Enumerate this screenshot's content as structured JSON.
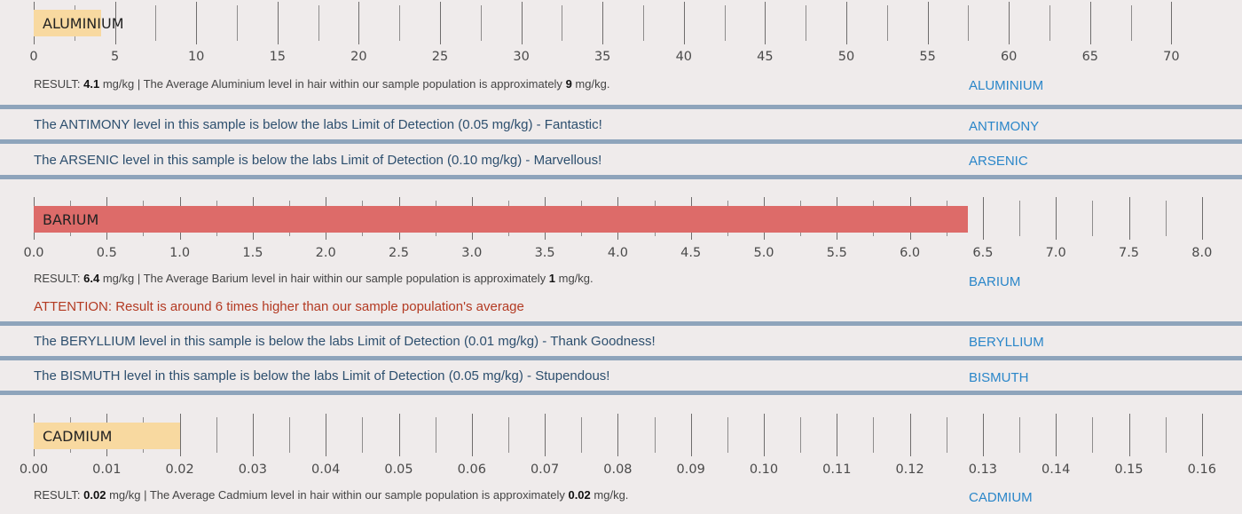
{
  "colors": {
    "low_bar": "#f8d9a0",
    "high_bar": "#dd6b69",
    "rule": "#8ea4bb",
    "link": "#2a86c9"
  },
  "sections": {
    "aluminium": {
      "bar_label": "ALUMINIUM",
      "ticks": [
        "0",
        "5",
        "10",
        "15",
        "20",
        "25",
        "30",
        "35",
        "40",
        "45",
        "50",
        "55",
        "60",
        "65",
        "70"
      ],
      "max": 72.5,
      "value": 4.1,
      "result_prefix": "RESULT:",
      "result_value": "4.1",
      "result_mid": "mg/kg | The Average Aluminium level in hair within our sample population is approximately",
      "avg_value": "9",
      "result_unit": "mg/kg.",
      "side_label": "ALUMINIUM"
    },
    "antimony": {
      "message": "The ANTIMONY level in this sample is below the labs Limit of Detection (0.05 mg/kg) - Fantastic!",
      "side_label": "ANTIMONY"
    },
    "arsenic": {
      "message": "The ARSENIC level in this sample is below the labs Limit of Detection (0.10 mg/kg) - Marvellous!",
      "side_label": "ARSENIC"
    },
    "barium": {
      "bar_label": "BARIUM",
      "ticks": [
        "0.0",
        "0.5",
        "1.0",
        "1.5",
        "2.0",
        "2.5",
        "3.0",
        "3.5",
        "4.0",
        "4.5",
        "5.0",
        "5.5",
        "6.0",
        "6.5",
        "7.0",
        "7.5",
        "8.0"
      ],
      "max": 8.0,
      "value": 6.4,
      "result_prefix": "RESULT:",
      "result_value": "6.4",
      "result_mid": "mg/kg | The Average Barium level in hair within our sample population is approximately",
      "avg_value": "1",
      "result_unit": "mg/kg.",
      "attention": "ATTENTION: Result is around 6 times higher than our sample population's average",
      "side_label": "BARIUM"
    },
    "beryllium": {
      "message": "The BERYLLIUM level in this sample is below the labs Limit of Detection (0.01 mg/kg) - Thank Goodness!",
      "side_label": "BERYLLIUM"
    },
    "bismuth": {
      "message": "The BISMUTH level in this sample is below the labs Limit of Detection (0.05 mg/kg) - Stupendous!",
      "side_label": "BISMUTH"
    },
    "cadmium": {
      "bar_label": "CADMIUM",
      "ticks": [
        "0.00",
        "0.01",
        "0.02",
        "0.03",
        "0.04",
        "0.05",
        "0.06",
        "0.07",
        "0.08",
        "0.09",
        "0.10",
        "0.11",
        "0.12",
        "0.13",
        "0.14",
        "0.15",
        "0.16"
      ],
      "max": 0.16,
      "value": 0.02,
      "result_prefix": "RESULT:",
      "result_value": "0.02",
      "result_mid": "mg/kg | The Average Cadmium level in hair within our sample population is approximately",
      "avg_value": "0.02",
      "result_unit": "mg/kg.",
      "side_label": "CADMIUM"
    }
  }
}
